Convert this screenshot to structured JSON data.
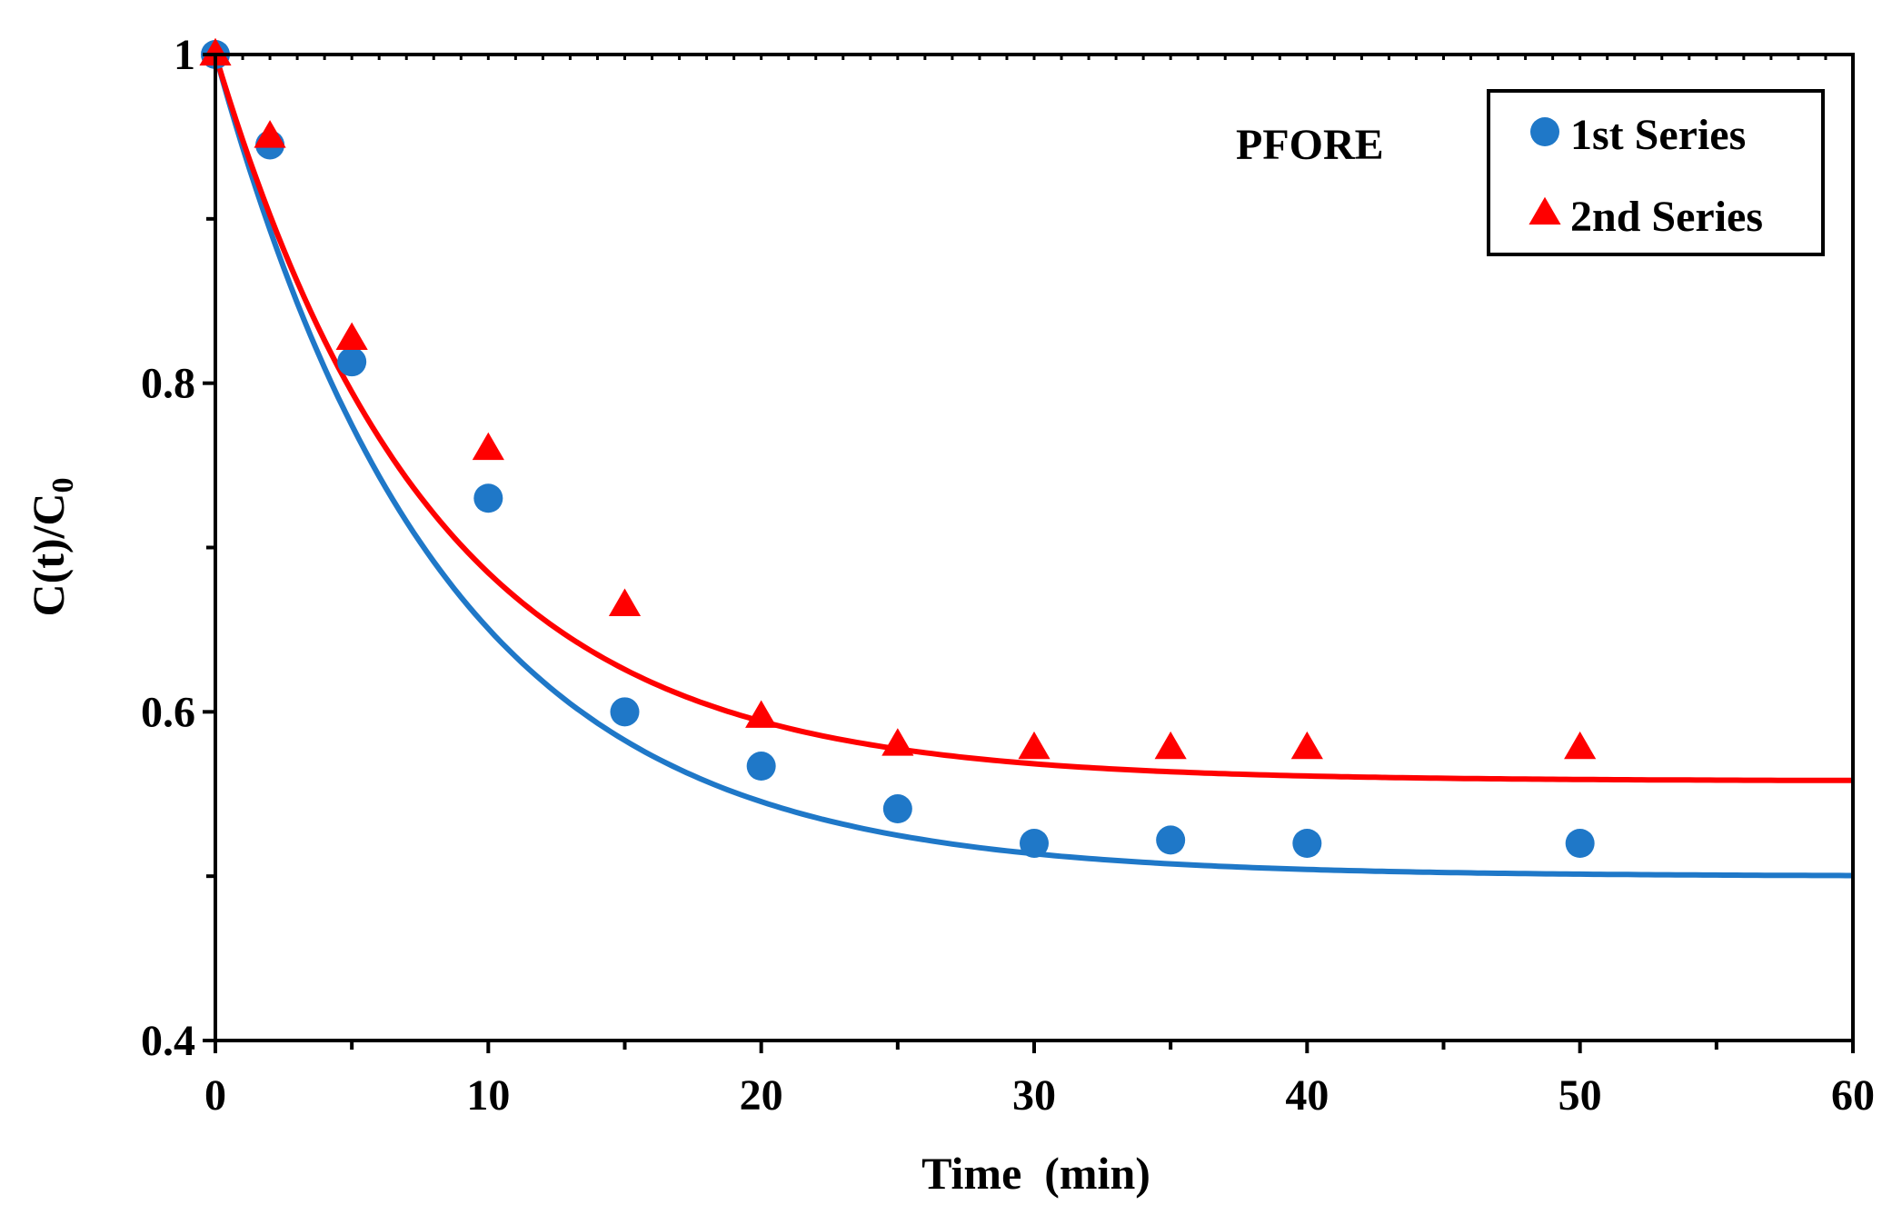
{
  "chart_data": {
    "type": "scatter",
    "title": "",
    "annotation": "PFORE",
    "xlabel": "Time  (min)",
    "ylabel": {
      "main": "C(t)/C",
      "sub": "0"
    },
    "xlim": [
      0,
      60
    ],
    "ylim": [
      0.4,
      1.0
    ],
    "x_ticks": [
      0,
      10,
      20,
      30,
      40,
      50,
      60
    ],
    "x_tick_labels": [
      "0",
      "10",
      "20",
      "30",
      "40",
      "50",
      "60"
    ],
    "x_minor_step": 5,
    "y_ticks": [
      0.4,
      0.6,
      0.8,
      1.0
    ],
    "y_tick_labels": [
      "0.4",
      "0.6",
      "0.8",
      "1"
    ],
    "y_minor_step": 0.1,
    "grid": false,
    "legend_position": "top-right",
    "series": [
      {
        "name": "1st Series",
        "marker": "circle",
        "color": "#1f78c8",
        "x": [
          0,
          2,
          5,
          10,
          15,
          20,
          25,
          30,
          35,
          40,
          50
        ],
        "y": [
          1.0,
          0.945,
          0.813,
          0.73,
          0.6,
          0.567,
          0.541,
          0.52,
          0.522,
          0.52,
          0.52
        ],
        "fit": {
          "type": "exponential",
          "equilibrium": 0.5,
          "k": 0.12
        }
      },
      {
        "name": "2nd Series",
        "marker": "triangle",
        "color": "#ff0000",
        "x": [
          0,
          2,
          5,
          10,
          15,
          20,
          25,
          30,
          35,
          40,
          50
        ],
        "y": [
          1.0,
          0.95,
          0.827,
          0.76,
          0.665,
          0.597,
          0.58,
          0.578,
          0.578,
          0.578,
          0.578
        ],
        "fit": {
          "type": "exponential",
          "equilibrium": 0.558,
          "k": 0.125
        }
      }
    ]
  }
}
